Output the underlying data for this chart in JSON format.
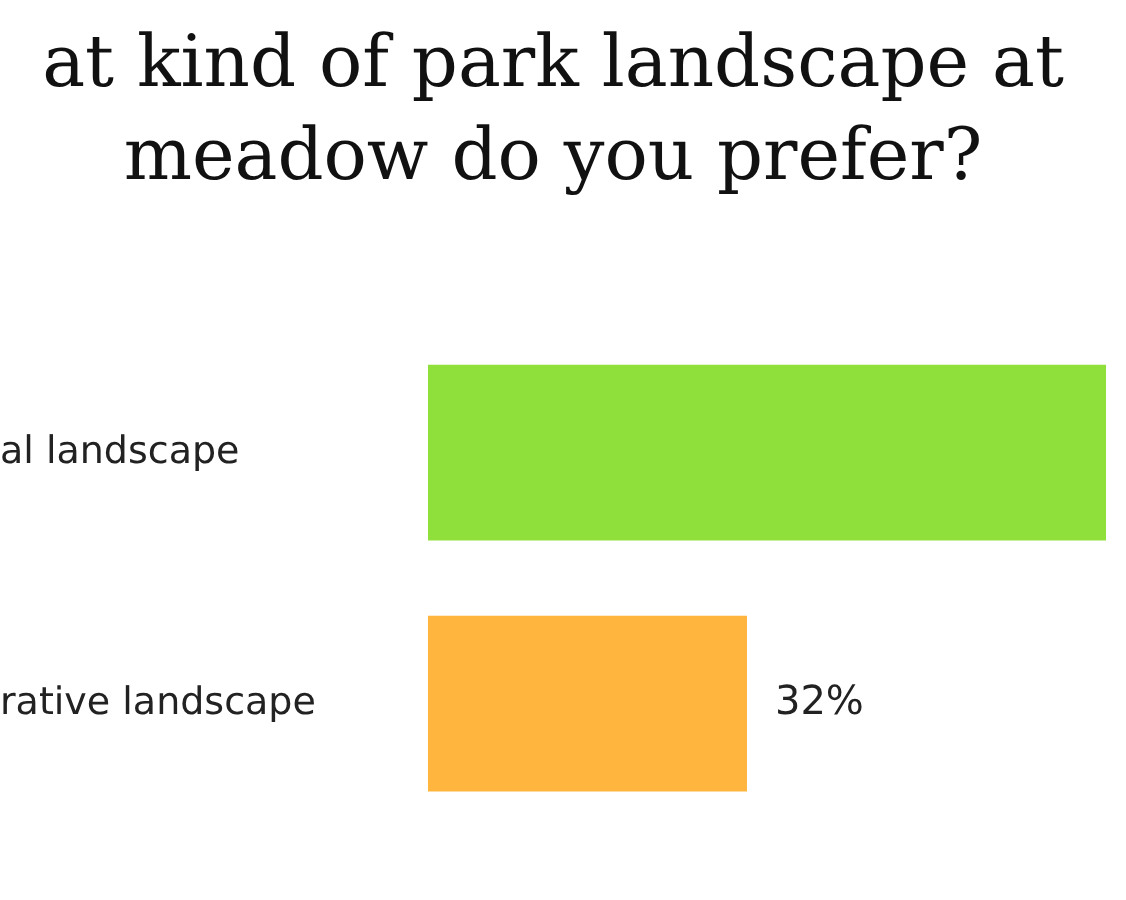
{
  "chart_data": {
    "type": "bar",
    "orientation": "horizontal",
    "title": [
      "at kind of park landscape at",
      "meadow do you prefer?"
    ],
    "categories": [
      "al landscape",
      "rative landscape"
    ],
    "values": [
      68,
      32
    ],
    "value_labels": [
      null,
      "32%"
    ],
    "colors": [
      "#8fe03a",
      "#ffb53e"
    ],
    "legend": false
  }
}
